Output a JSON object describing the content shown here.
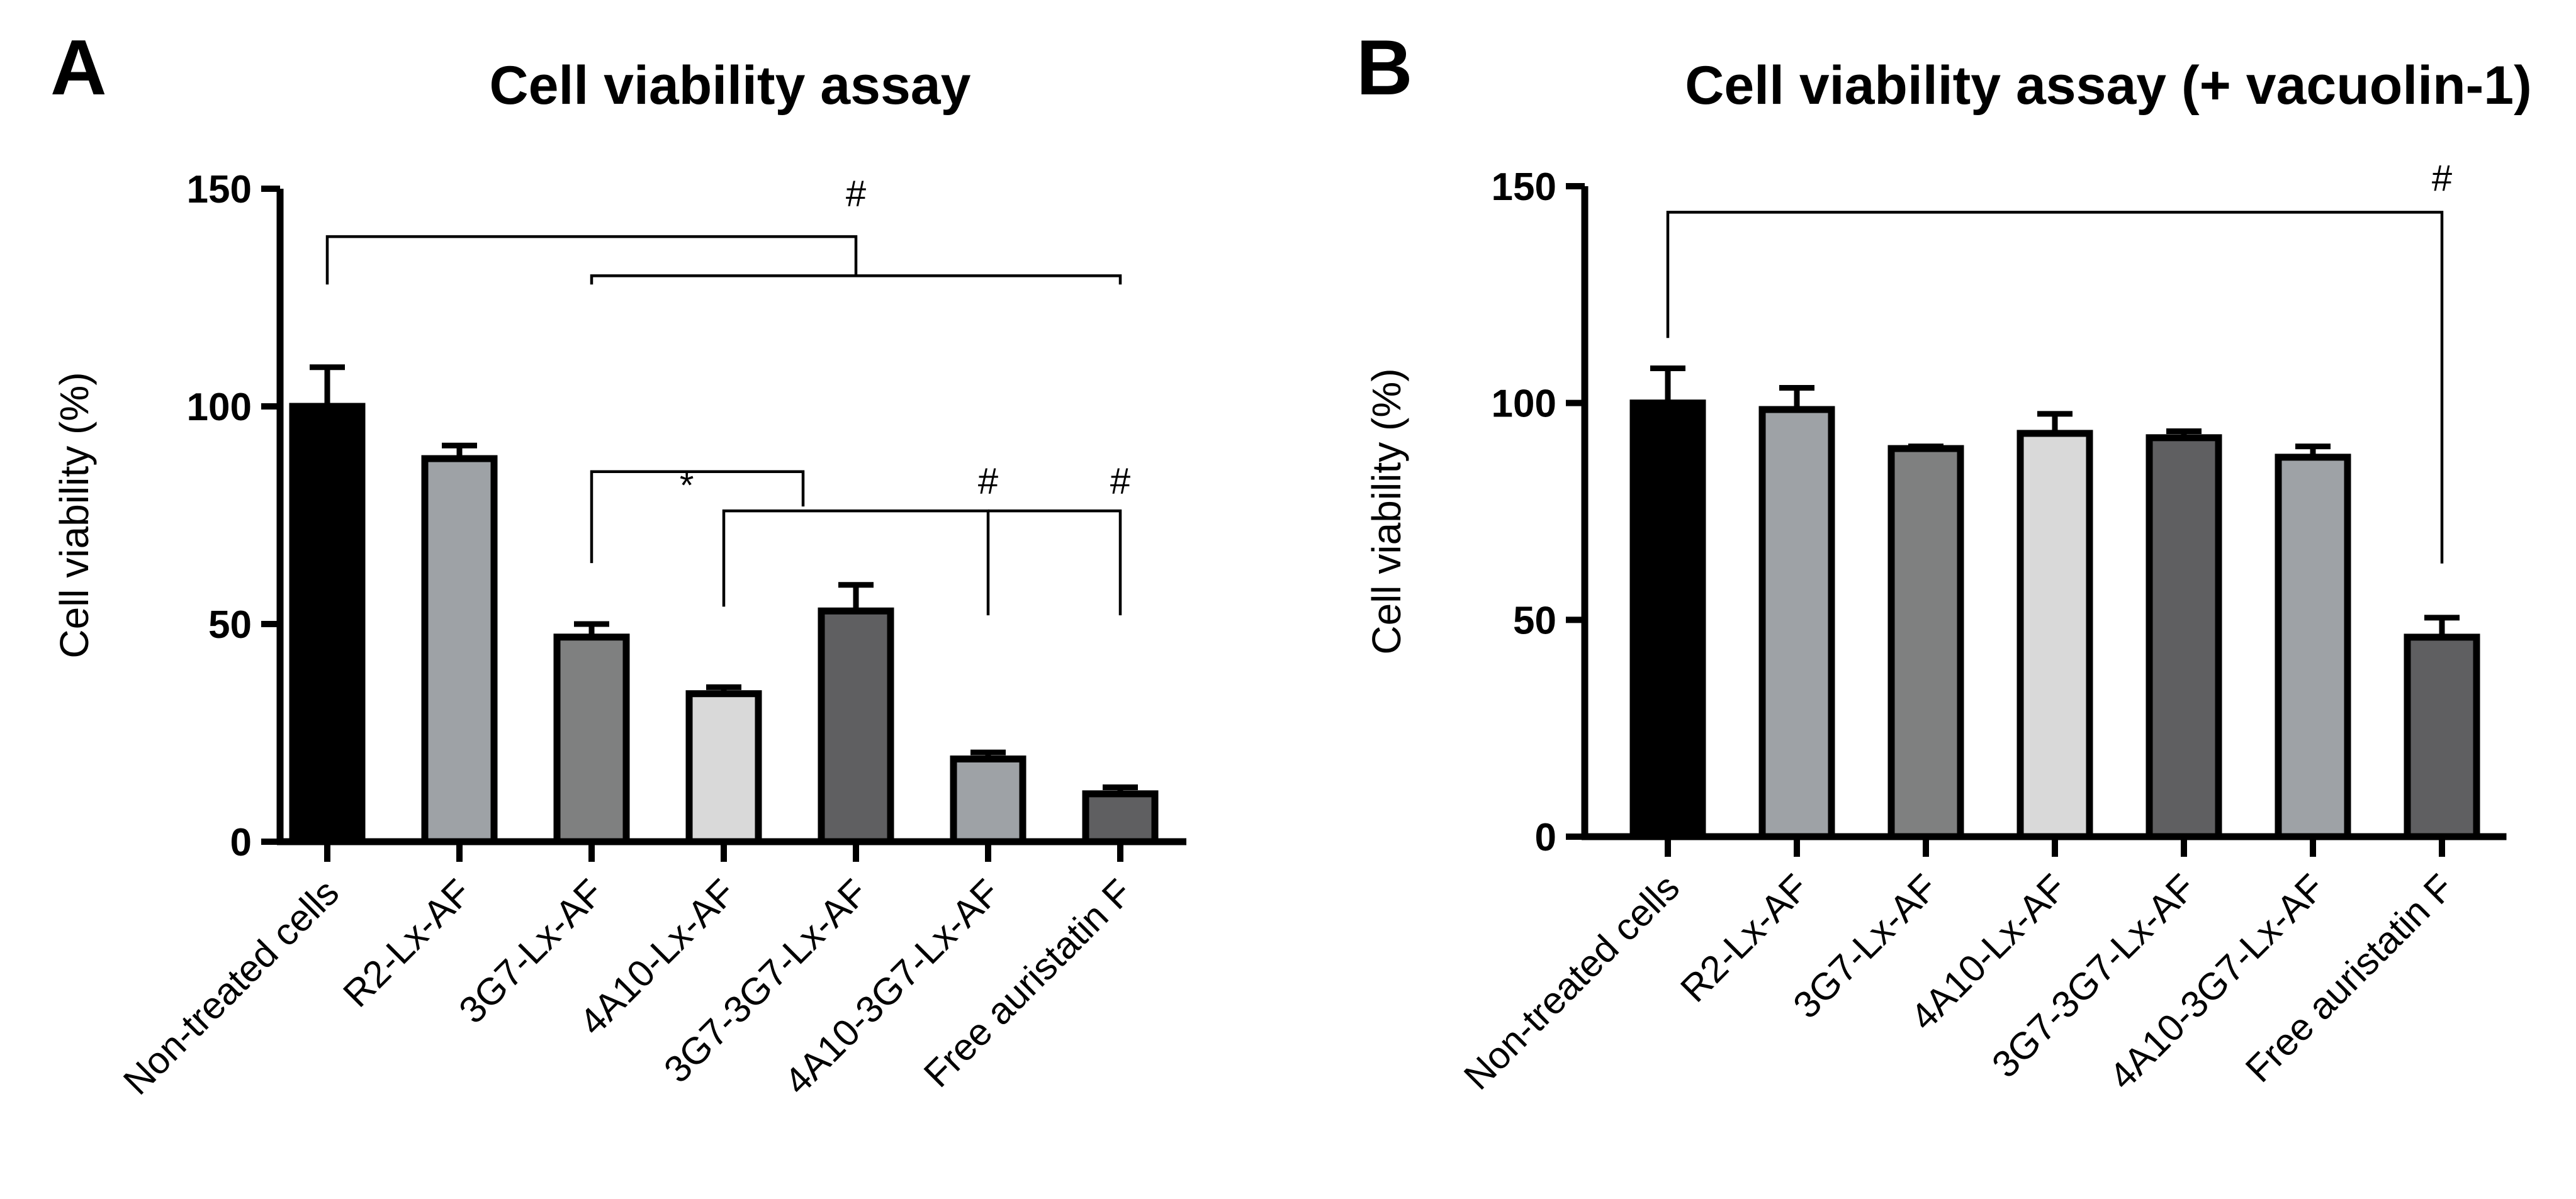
{
  "chart_data": [
    {
      "panel": "A",
      "type": "bar",
      "title": "Cell viability assay",
      "ylabel": "Cell viability (%)",
      "xlabel": "",
      "ylim": [
        0,
        150
      ],
      "yticks": [
        0,
        50,
        100,
        150
      ],
      "categories": [
        "Non-treated cells",
        "R2-Lx-AF",
        "3G7-Lx-AF",
        "4A10-Lx-AF",
        "3G7-3G7-Lx-AF",
        "4A10-3G7-Lx-AF",
        "Free auristatin F"
      ],
      "values": [
        100,
        88,
        47,
        34,
        53,
        19,
        11
      ],
      "errors": [
        9,
        3,
        3,
        1.5,
        6,
        1.5,
        1.5
      ],
      "colors": [
        "#000000",
        "#9ea2a6",
        "#7f8080",
        "#d9d9d9",
        "#5f5f61",
        "#9ea2a6",
        "#5f5f61"
      ],
      "annotations": [
        {
          "label": "#",
          "from": [
            0
          ],
          "to": [
            2,
            3,
            4,
            5,
            6
          ]
        },
        {
          "label": "*",
          "from": [
            2
          ],
          "to": [
            3
          ]
        },
        {
          "label": "#",
          "from": [
            3
          ],
          "to": [
            5
          ]
        },
        {
          "label": "#",
          "from": [
            3
          ],
          "to": [
            6
          ]
        }
      ]
    },
    {
      "panel": "B",
      "type": "bar",
      "title": "Cell viability assay (+ vacuolin-1)",
      "ylabel": "Cell viability (%)",
      "xlabel": "",
      "ylim": [
        0,
        150
      ],
      "yticks": [
        0,
        50,
        100,
        150
      ],
      "categories": [
        "Non-treated cells",
        "R2-Lx-AF",
        "3G7-Lx-AF",
        "4A10-Lx-AF",
        "3G7-3G7-Lx-AF",
        "4A10-3G7-Lx-AF",
        "Free auristatin F"
      ],
      "values": [
        100,
        98.5,
        89.5,
        93,
        92,
        87.5,
        46
      ],
      "errors": [
        8,
        5,
        0.5,
        4.5,
        1.5,
        2.5,
        4.5
      ],
      "colors": [
        "#000000",
        "#9ea2a6",
        "#7f8080",
        "#d9d9d9",
        "#5f5f61",
        "#9ea2a6",
        "#5f5f61"
      ],
      "annotations": [
        {
          "label": "#",
          "from": [
            0
          ],
          "to": [
            6
          ]
        }
      ]
    }
  ]
}
